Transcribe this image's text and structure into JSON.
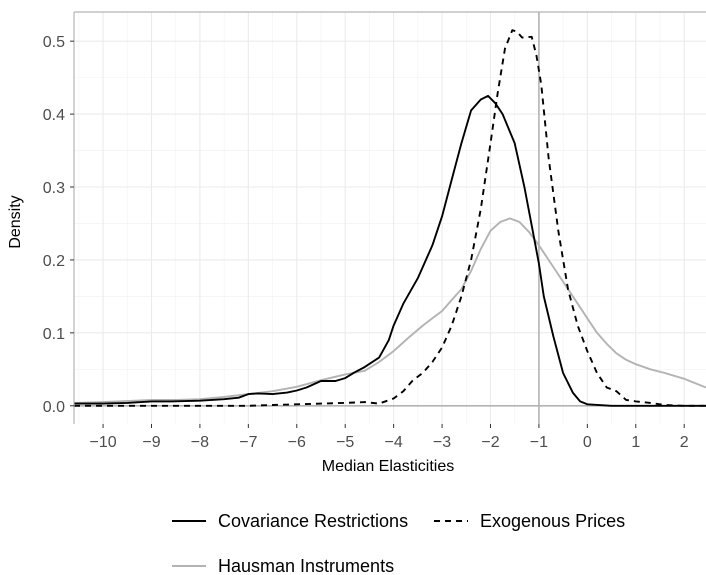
{
  "chart_data": {
    "type": "line",
    "title": "",
    "xlabel": "Median Elasticities",
    "ylabel": "Density",
    "xlim": [
      -10.6,
      2.45
    ],
    "ylim": [
      -0.025,
      0.54
    ],
    "x_ticks": [
      -10,
      -9,
      -8,
      -7,
      -6,
      -5,
      -4,
      -3,
      -2,
      -1,
      0,
      1,
      2
    ],
    "x_tick_labels": [
      "−10",
      "−9",
      "−8",
      "−7",
      "−6",
      "−5",
      "−4",
      "−3",
      "−2",
      "−1",
      "0",
      "1",
      "2"
    ],
    "y_ticks": [
      0.0,
      0.1,
      0.2,
      0.3,
      0.4,
      0.5
    ],
    "y_tick_labels": [
      "0.0",
      "0.1",
      "0.2",
      "0.3",
      "0.4",
      "0.5"
    ],
    "grid": true,
    "reference_lines": {
      "vertical_x": -1,
      "horizontal_y": 0,
      "color": "#b3b3b3"
    },
    "legend_position": "bottom",
    "series": [
      {
        "name": "Covariance Restrictions",
        "color": "#000000",
        "dash": "solid",
        "points": [
          [
            -10.6,
            0.003
          ],
          [
            -10,
            0.003
          ],
          [
            -9.5,
            0.004
          ],
          [
            -9,
            0.006
          ],
          [
            -8.6,
            0.006
          ],
          [
            -8,
            0.007
          ],
          [
            -7.5,
            0.009
          ],
          [
            -7.2,
            0.011
          ],
          [
            -7,
            0.016
          ],
          [
            -6.8,
            0.017
          ],
          [
            -6.5,
            0.016
          ],
          [
            -6.2,
            0.018
          ],
          [
            -6,
            0.021
          ],
          [
            -5.8,
            0.025
          ],
          [
            -5.5,
            0.034
          ],
          [
            -5.2,
            0.034
          ],
          [
            -5,
            0.038
          ],
          [
            -4.8,
            0.046
          ],
          [
            -4.6,
            0.053
          ],
          [
            -4.3,
            0.066
          ],
          [
            -4.1,
            0.09
          ],
          [
            -4,
            0.11
          ],
          [
            -3.8,
            0.14
          ],
          [
            -3.5,
            0.175
          ],
          [
            -3.2,
            0.22
          ],
          [
            -3,
            0.26
          ],
          [
            -2.8,
            0.31
          ],
          [
            -2.6,
            0.36
          ],
          [
            -2.4,
            0.405
          ],
          [
            -2.2,
            0.42
          ],
          [
            -2.05,
            0.425
          ],
          [
            -1.9,
            0.415
          ],
          [
            -1.75,
            0.4
          ],
          [
            -1.5,
            0.36
          ],
          [
            -1.3,
            0.3
          ],
          [
            -1.1,
            0.23
          ],
          [
            -1,
            0.195
          ],
          [
            -0.9,
            0.15
          ],
          [
            -0.7,
            0.095
          ],
          [
            -0.5,
            0.045
          ],
          [
            -0.3,
            0.018
          ],
          [
            -0.15,
            0.006
          ],
          [
            0,
            0.002
          ],
          [
            0.5,
            0.0
          ],
          [
            1,
            0.0
          ],
          [
            2,
            0.0
          ],
          [
            2.45,
            0.0
          ]
        ]
      },
      {
        "name": "Exogenous Prices",
        "color": "#000000",
        "dash": "dashed",
        "points": [
          [
            -10.6,
            0.0
          ],
          [
            -9,
            0.0
          ],
          [
            -8,
            0.0
          ],
          [
            -7,
            0.0
          ],
          [
            -6.5,
            0.001
          ],
          [
            -6,
            0.002
          ],
          [
            -5.5,
            0.003
          ],
          [
            -5,
            0.004
          ],
          [
            -4.6,
            0.005
          ],
          [
            -4.3,
            0.003
          ],
          [
            -4,
            0.01
          ],
          [
            -3.8,
            0.02
          ],
          [
            -3.6,
            0.035
          ],
          [
            -3.4,
            0.045
          ],
          [
            -3.2,
            0.06
          ],
          [
            -3,
            0.08
          ],
          [
            -2.8,
            0.11
          ],
          [
            -2.6,
            0.15
          ],
          [
            -2.4,
            0.2
          ],
          [
            -2.2,
            0.27
          ],
          [
            -2,
            0.36
          ],
          [
            -1.85,
            0.43
          ],
          [
            -1.7,
            0.49
          ],
          [
            -1.55,
            0.515
          ],
          [
            -1.45,
            0.513
          ],
          [
            -1.35,
            0.505
          ],
          [
            -1.15,
            0.506
          ],
          [
            -1.05,
            0.48
          ],
          [
            -0.95,
            0.44
          ],
          [
            -0.8,
            0.34
          ],
          [
            -0.6,
            0.24
          ],
          [
            -0.4,
            0.16
          ],
          [
            -0.2,
            0.11
          ],
          [
            0,
            0.075
          ],
          [
            0.2,
            0.045
          ],
          [
            0.4,
            0.025
          ],
          [
            0.6,
            0.02
          ],
          [
            0.8,
            0.008
          ],
          [
            1,
            0.006
          ],
          [
            1.3,
            0.004
          ],
          [
            1.6,
            0.001
          ],
          [
            2,
            0.0
          ],
          [
            2.45,
            0.0
          ]
        ]
      },
      {
        "name": "Hausman Instruments",
        "color": "#b3b3b3",
        "dash": "solid",
        "points": [
          [
            -10.6,
            0.004
          ],
          [
            -10,
            0.005
          ],
          [
            -9,
            0.008
          ],
          [
            -8.5,
            0.008
          ],
          [
            -8,
            0.009
          ],
          [
            -7.5,
            0.012
          ],
          [
            -7,
            0.016
          ],
          [
            -6.5,
            0.02
          ],
          [
            -6,
            0.026
          ],
          [
            -5.5,
            0.035
          ],
          [
            -5,
            0.043
          ],
          [
            -4.6,
            0.048
          ],
          [
            -4.3,
            0.06
          ],
          [
            -4,
            0.075
          ],
          [
            -3.7,
            0.093
          ],
          [
            -3.4,
            0.11
          ],
          [
            -3.2,
            0.12
          ],
          [
            -3,
            0.13
          ],
          [
            -2.8,
            0.145
          ],
          [
            -2.6,
            0.16
          ],
          [
            -2.4,
            0.185
          ],
          [
            -2.2,
            0.215
          ],
          [
            -2,
            0.24
          ],
          [
            -1.8,
            0.252
          ],
          [
            -1.6,
            0.257
          ],
          [
            -1.4,
            0.252
          ],
          [
            -1.2,
            0.238
          ],
          [
            -1,
            0.22
          ],
          [
            -0.8,
            0.2
          ],
          [
            -0.6,
            0.18
          ],
          [
            -0.4,
            0.16
          ],
          [
            -0.2,
            0.14
          ],
          [
            0,
            0.12
          ],
          [
            0.2,
            0.1
          ],
          [
            0.4,
            0.085
          ],
          [
            0.6,
            0.072
          ],
          [
            0.8,
            0.063
          ],
          [
            1,
            0.057
          ],
          [
            1.3,
            0.05
          ],
          [
            1.6,
            0.045
          ],
          [
            2,
            0.037
          ],
          [
            2.45,
            0.025
          ]
        ]
      }
    ]
  }
}
